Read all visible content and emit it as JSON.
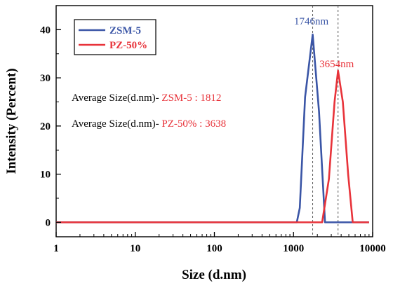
{
  "chart_data": {
    "type": "line",
    "xlabel": "Size (d.nm)",
    "ylabel": "Intensity (Percent)",
    "xscale": "log",
    "xlim": [
      1,
      10000
    ],
    "ylim": [
      -3,
      45
    ],
    "x_ticks": [
      1,
      10,
      100,
      1000,
      10000
    ],
    "x_tick_labels": [
      "1",
      "10",
      "100",
      "1000",
      "10000"
    ],
    "y_ticks": [
      0,
      10,
      20,
      30,
      40
    ],
    "y_tick_labels": [
      "0",
      "10",
      "20",
      "30",
      "40"
    ],
    "legend_position": "top-left",
    "series": [
      {
        "name": "ZSM-5",
        "color": "#3a55a6",
        "x": [
          1,
          1100,
          1200,
          1400,
          1746,
          2100,
          2500,
          3000,
          9000
        ],
        "y": [
          0,
          0,
          3,
          26,
          39,
          23,
          0,
          0,
          0
        ]
      },
      {
        "name": "PZ-50%",
        "color": "#e8333a",
        "x": [
          1,
          2300,
          2800,
          3300,
          3654,
          4200,
          4900,
          5600,
          9000
        ],
        "y": [
          0,
          0,
          9,
          25,
          31.5,
          25,
          10,
          0,
          0
        ]
      }
    ],
    "peak_lines": [
      {
        "x": 1746,
        "label": "1746nm",
        "color": "#3a55a6"
      },
      {
        "x": 3654,
        "label": "3654nm",
        "color": "#e8333a"
      }
    ],
    "annotations": [
      {
        "prefix": "Average Size(d.nm)- ",
        "value": "ZSM-5 : 1812",
        "value_color": "#e8333a"
      },
      {
        "prefix": "Average Size(d.nm)- ",
        "value": "PZ-50% : 3638",
        "value_color": "#e8333a"
      }
    ]
  }
}
